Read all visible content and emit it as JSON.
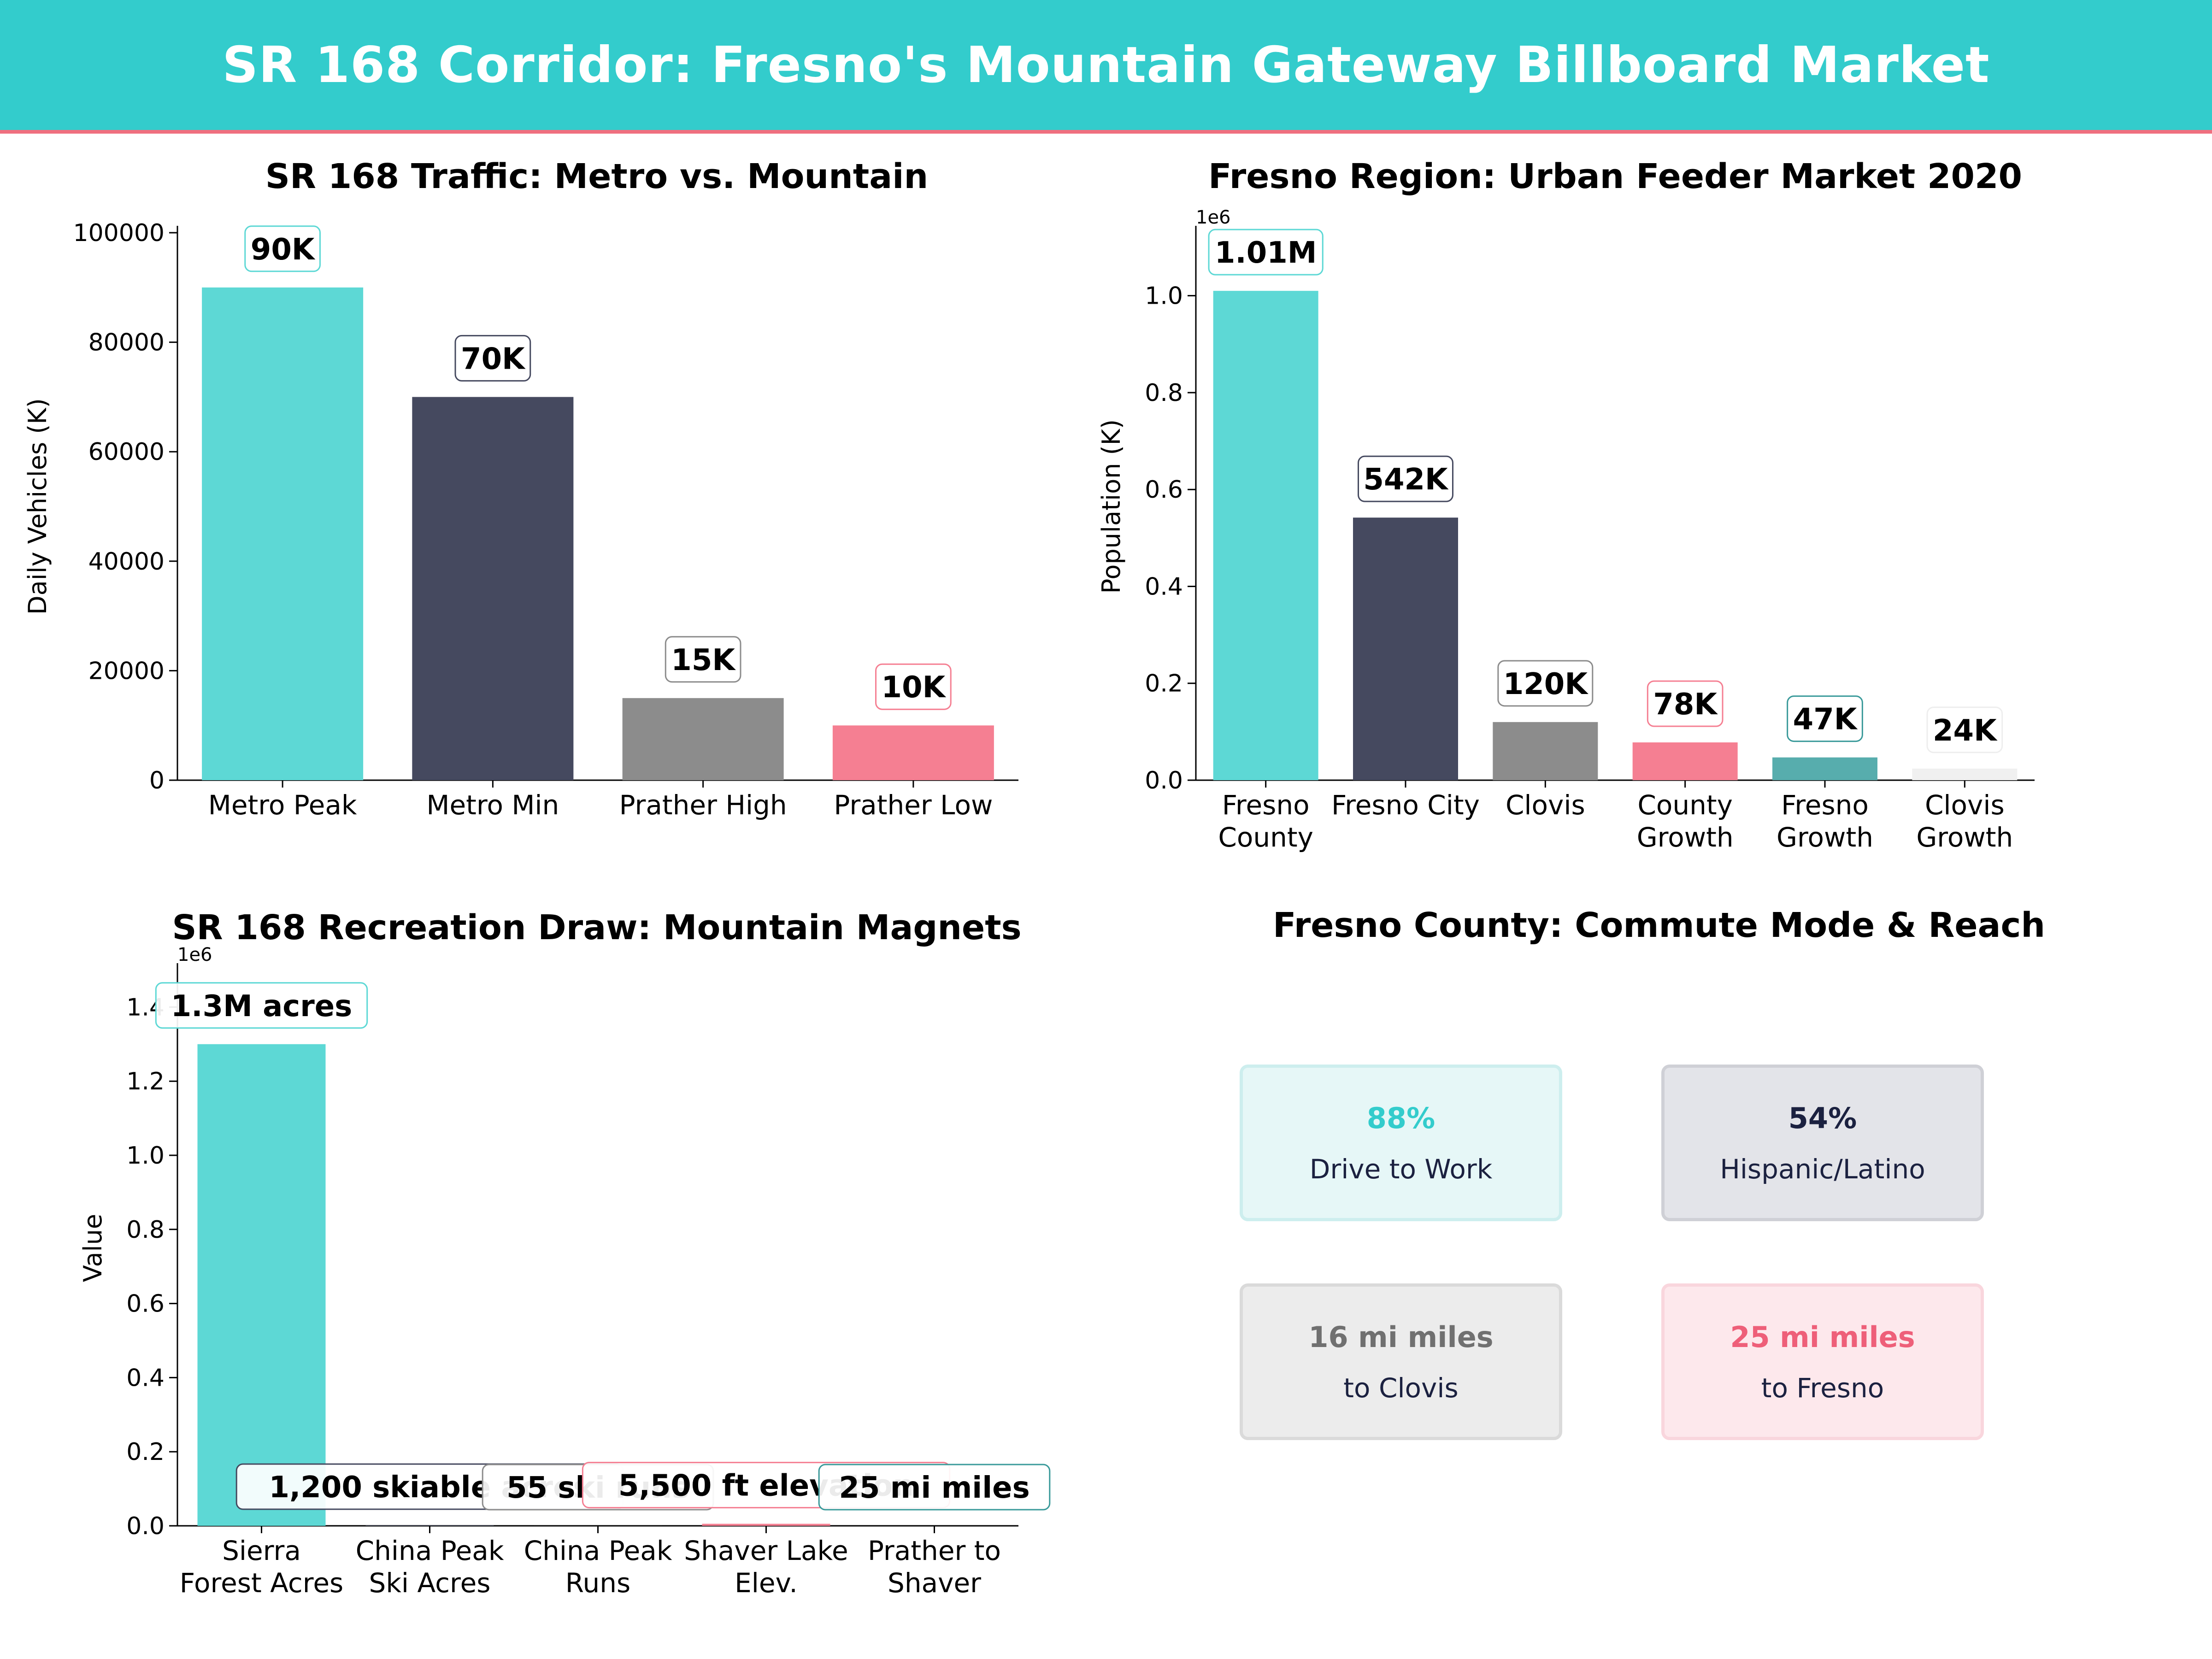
{
  "header": {
    "title": "SR 168 Corridor: Fresno's Mountain Gateway Billboard Market"
  },
  "chart_data": [
    {
      "type": "bar",
      "title": "SR 168 Traffic: Metro vs. Mountain",
      "ylabel": "Daily Vehicles (K)",
      "ylim": [
        0,
        100000
      ],
      "yticks": [
        "0",
        "20000",
        "40000",
        "60000",
        "80000",
        "100000"
      ],
      "ytick_values": [
        0,
        20000,
        40000,
        60000,
        80000,
        100000
      ],
      "categories": [
        [
          "Metro Peak"
        ],
        [
          "Metro Min"
        ],
        [
          "Prather High"
        ],
        [
          "Prather Low"
        ]
      ],
      "values": [
        90000,
        70000,
        15000,
        10000
      ],
      "data_labels": [
        "90K",
        "70K",
        "15K",
        "10K"
      ],
      "colors": [
        "#5dd8d5",
        "#45495f",
        "#8c8c8c",
        "#f57f92"
      ],
      "label_borders": [
        "#5dd8d5",
        "#45495f",
        "#8c8c8c",
        "#f57f92"
      ],
      "grid": false
    },
    {
      "type": "bar",
      "title": "Fresno Region: Urban Feeder Market 2020",
      "ylabel": "Population (K)",
      "multiplier": "1e6",
      "ylim": [
        0,
        1130000
      ],
      "yticks": [
        "0.0",
        "0.2",
        "0.4",
        "0.6",
        "0.8",
        "1.0"
      ],
      "ytick_values": [
        0,
        200000,
        400000,
        600000,
        800000,
        1000000
      ],
      "categories": [
        [
          "Fresno",
          "County"
        ],
        [
          "Fresno City"
        ],
        [
          "Clovis"
        ],
        [
          "County",
          "Growth"
        ],
        [
          "Fresno",
          "Growth"
        ],
        [
          "Clovis",
          "Growth"
        ]
      ],
      "values": [
        1010000,
        542000,
        120000,
        78000,
        47000,
        24000
      ],
      "data_labels": [
        "1.01M",
        "542K",
        "120K",
        "78K",
        "47K",
        "24K"
      ],
      "colors": [
        "#5dd8d5",
        "#45495f",
        "#8c8c8c",
        "#f57f92",
        "#57adad",
        "#f0f0f0"
      ],
      "label_borders": [
        "#5dd8d5",
        "#45495f",
        "#8c8c8c",
        "#f57f92",
        "#3a9a9a",
        "#eeeeee"
      ],
      "grid": false
    },
    {
      "type": "bar",
      "title": "SR 168 Recreation Draw: Mountain Magnets",
      "ylabel": "Value",
      "multiplier": "1e6",
      "ylim": [
        0,
        1500000
      ],
      "yticks": [
        "0.0",
        "0.2",
        "0.4",
        "0.6",
        "0.8",
        "1.0",
        "1.2",
        "1.4"
      ],
      "ytick_values": [
        0,
        200000,
        400000,
        600000,
        800000,
        1000000,
        1200000,
        1400000
      ],
      "categories": [
        [
          "Sierra",
          "Forest Acres"
        ],
        [
          "China Peak",
          "Ski Acres"
        ],
        [
          "China Peak",
          "Runs"
        ],
        [
          "Shaver Lake",
          "Elev."
        ],
        [
          "Prather to",
          "Shaver"
        ]
      ],
      "values": [
        1300000,
        1200,
        55,
        5500,
        25
      ],
      "data_labels": [
        "1.3M acres",
        "1,200 skiable acres",
        "55 ski runs",
        "5,500 ft elevation",
        "25 mi miles"
      ],
      "colors": [
        "#5dd8d5",
        "#45495f",
        "#8c8c8c",
        "#f57f92",
        "#57adad"
      ],
      "label_borders": [
        "#5dd8d5",
        "#45495f",
        "#8c8c8c",
        "#f57f92",
        "#3a9a9a"
      ],
      "grid": false
    },
    {
      "type": "table",
      "title": "Fresno County: Commute Mode & Reach",
      "cards": [
        {
          "value": "88%",
          "label": "Drive to Work",
          "color": "#33cccc",
          "bg": "#e6f7f7",
          "border": "#cdeeee"
        },
        {
          "value": "54%",
          "label": "Hispanic/Latino",
          "color": "#1b2140",
          "bg": "#e3e4e9",
          "border": "#cfd0d6"
        },
        {
          "value": "16 mi miles",
          "label": "to Clovis",
          "color": "#707070",
          "bg": "#ececec",
          "border": "#dadada"
        },
        {
          "value": "25 mi miles",
          "label": "to Fresno",
          "color": "#ee5f79",
          "bg": "#fde8ec",
          "border": "#f9d6dd"
        }
      ]
    }
  ]
}
